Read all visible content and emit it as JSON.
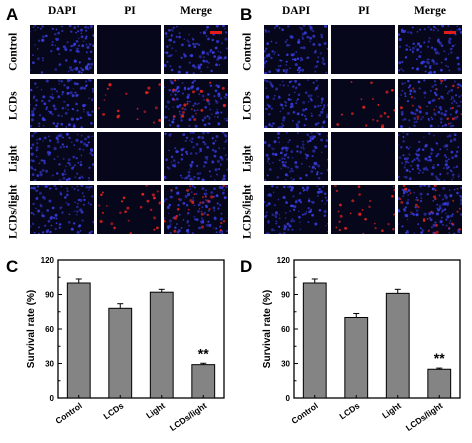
{
  "panels": {
    "A": {
      "letter": "A"
    },
    "B": {
      "letter": "B"
    },
    "C": {
      "letter": "C"
    },
    "D": {
      "letter": "D"
    }
  },
  "microscopy": {
    "columns": [
      "DAPI",
      "PI",
      "Merge"
    ],
    "rows": [
      "Control",
      "LCDs",
      "Light",
      "LCDs/light"
    ],
    "colors": {
      "background": "#07071c",
      "dapi": "#3a3fe6",
      "pi": "#e0221e",
      "scale_bar": "#e31b1b"
    }
  },
  "chart_data": [
    {
      "type": "bar",
      "panel": "C",
      "categories": [
        "Control",
        "LCDs",
        "Light",
        "LCDs/light"
      ],
      "values": [
        100,
        78,
        92,
        29
      ],
      "errors": [
        3.5,
        4,
        2.5,
        1.2
      ],
      "annotations": [
        {
          "category": "LCDs/light",
          "text": "**"
        }
      ],
      "ylabel": "Survival rate (%)",
      "ylim": [
        0,
        120
      ],
      "yticks": [
        0,
        30,
        60,
        90,
        120
      ],
      "bar_color": "#848484",
      "grid": false
    },
    {
      "type": "bar",
      "panel": "D",
      "categories": [
        "Control",
        "LCDs",
        "Light",
        "LCDs/light"
      ],
      "values": [
        100,
        70,
        91,
        25
      ],
      "errors": [
        3.5,
        3.5,
        3.5,
        1
      ],
      "annotations": [
        {
          "category": "LCDs/light",
          "text": "**"
        }
      ],
      "ylabel": "Survival rate (%)",
      "ylim": [
        0,
        120
      ],
      "yticks": [
        0,
        30,
        60,
        90,
        120
      ],
      "bar_color": "#848484",
      "grid": false
    }
  ]
}
